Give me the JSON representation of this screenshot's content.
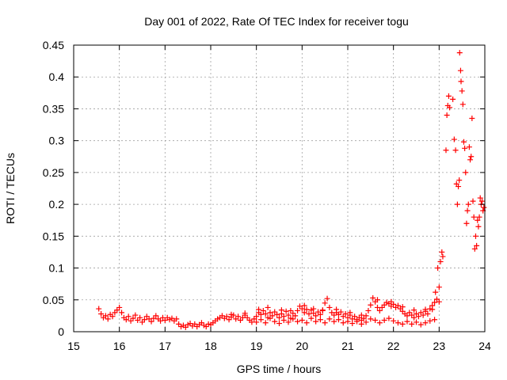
{
  "chart_data": {
    "type": "scatter",
    "title": "Day 001 of 2022, Rate Of TEC Index for receiver togu",
    "xlabel": "GPS time / hours",
    "ylabel": "ROTI / TECUs",
    "xlim": [
      15,
      24
    ],
    "ylim": [
      0,
      0.45
    ],
    "x_ticks": [
      15,
      16,
      17,
      18,
      19,
      20,
      21,
      22,
      23,
      24
    ],
    "y_ticks": [
      0,
      0.05,
      0.1,
      0.15,
      0.2,
      0.25,
      0.3,
      0.35,
      0.4,
      0.45
    ],
    "x_tick_labels": [
      "15",
      "16",
      "17",
      "18",
      "19",
      "20",
      "21",
      "22",
      "23",
      "24"
    ],
    "y_tick_labels": [
      "0",
      "0.05",
      "0.1",
      "0.15",
      "0.2",
      "0.25",
      "0.3",
      "0.35",
      "0.4",
      "0.45"
    ],
    "grid": true,
    "marker": "plus",
    "color": "#ff0000",
    "series": [
      {
        "points": [
          [
            15.55,
            0.036
          ],
          [
            15.6,
            0.028
          ],
          [
            15.65,
            0.022
          ],
          [
            15.7,
            0.025
          ],
          [
            15.75,
            0.02
          ],
          [
            15.8,
            0.027
          ],
          [
            15.85,
            0.024
          ],
          [
            15.9,
            0.03
          ],
          [
            15.95,
            0.034
          ],
          [
            16.0,
            0.038
          ],
          [
            16.05,
            0.03
          ],
          [
            16.1,
            0.022
          ],
          [
            16.15,
            0.019
          ],
          [
            16.2,
            0.024
          ],
          [
            16.25,
            0.017
          ],
          [
            16.3,
            0.021
          ],
          [
            16.35,
            0.026
          ],
          [
            16.4,
            0.018
          ],
          [
            16.45,
            0.022
          ],
          [
            16.5,
            0.015
          ],
          [
            16.55,
            0.019
          ],
          [
            16.6,
            0.024
          ],
          [
            16.65,
            0.02
          ],
          [
            16.7,
            0.016
          ],
          [
            16.75,
            0.021
          ],
          [
            16.8,
            0.025
          ],
          [
            16.85,
            0.02
          ],
          [
            16.9,
            0.017
          ],
          [
            16.95,
            0.022
          ],
          [
            17.0,
            0.018
          ],
          [
            17.05,
            0.022
          ],
          [
            17.1,
            0.019
          ],
          [
            17.15,
            0.021
          ],
          [
            17.2,
            0.017
          ],
          [
            17.25,
            0.02
          ],
          [
            17.3,
            0.012
          ],
          [
            17.35,
            0.008
          ],
          [
            17.4,
            0.01
          ],
          [
            17.45,
            0.007
          ],
          [
            17.5,
            0.011
          ],
          [
            17.55,
            0.013
          ],
          [
            17.6,
            0.009
          ],
          [
            17.65,
            0.012
          ],
          [
            17.7,
            0.008
          ],
          [
            17.75,
            0.011
          ],
          [
            17.8,
            0.014
          ],
          [
            17.85,
            0.01
          ],
          [
            17.9,
            0.008
          ],
          [
            17.95,
            0.012
          ],
          [
            18.0,
            0.011
          ],
          [
            18.05,
            0.014
          ],
          [
            18.1,
            0.017
          ],
          [
            18.15,
            0.02
          ],
          [
            18.2,
            0.022
          ],
          [
            18.25,
            0.025
          ],
          [
            18.3,
            0.021
          ],
          [
            18.35,
            0.024
          ],
          [
            18.4,
            0.019
          ],
          [
            18.45,
            0.023
          ],
          [
            18.5,
            0.026
          ],
          [
            18.55,
            0.02
          ],
          [
            18.6,
            0.024
          ],
          [
            18.65,
            0.018
          ],
          [
            18.7,
            0.022
          ],
          [
            18.75,
            0.026
          ],
          [
            18.8,
            0.022
          ],
          [
            18.85,
            0.018
          ],
          [
            18.9,
            0.015
          ],
          [
            18.95,
            0.02
          ],
          [
            19.0,
            0.024
          ],
          [
            19.05,
            0.03
          ],
          [
            19.1,
            0.027
          ],
          [
            19.15,
            0.033
          ],
          [
            19.2,
            0.028
          ],
          [
            19.25,
            0.022
          ],
          [
            19.3,
            0.03
          ],
          [
            19.35,
            0.025
          ],
          [
            19.4,
            0.031
          ],
          [
            19.45,
            0.027
          ],
          [
            19.5,
            0.022
          ],
          [
            19.55,
            0.028
          ],
          [
            19.6,
            0.024
          ],
          [
            19.65,
            0.032
          ],
          [
            19.7,
            0.026
          ],
          [
            19.75,
            0.021
          ],
          [
            19.8,
            0.029
          ],
          [
            19.85,
            0.025
          ],
          [
            19.9,
            0.033
          ],
          [
            19.95,
            0.04
          ],
          [
            20.0,
            0.036
          ],
          [
            20.05,
            0.03
          ],
          [
            20.1,
            0.035
          ],
          [
            20.15,
            0.028
          ],
          [
            20.2,
            0.034
          ],
          [
            20.25,
            0.029
          ],
          [
            20.3,
            0.025
          ],
          [
            20.35,
            0.031
          ],
          [
            20.4,
            0.027
          ],
          [
            20.45,
            0.033
          ],
          [
            20.5,
            0.045
          ],
          [
            20.55,
            0.052
          ],
          [
            20.6,
            0.038
          ],
          [
            20.65,
            0.03
          ],
          [
            20.7,
            0.026
          ],
          [
            20.75,
            0.03
          ],
          [
            20.8,
            0.027
          ],
          [
            20.85,
            0.031
          ],
          [
            20.9,
            0.024
          ],
          [
            20.95,
            0.028
          ],
          [
            21.0,
            0.022
          ],
          [
            21.05,
            0.026
          ],
          [
            21.1,
            0.02
          ],
          [
            21.15,
            0.024
          ],
          [
            21.2,
            0.019
          ],
          [
            21.25,
            0.022
          ],
          [
            21.3,
            0.018
          ],
          [
            21.35,
            0.021
          ],
          [
            21.4,
            0.025
          ],
          [
            21.45,
            0.033
          ],
          [
            21.5,
            0.042
          ],
          [
            21.55,
            0.053
          ],
          [
            21.6,
            0.047
          ],
          [
            21.65,
            0.038
          ],
          [
            21.7,
            0.033
          ],
          [
            21.75,
            0.038
          ],
          [
            21.8,
            0.042
          ],
          [
            21.85,
            0.046
          ],
          [
            21.9,
            0.044
          ],
          [
            21.95,
            0.047
          ],
          [
            22.0,
            0.043
          ],
          [
            22.05,
            0.038
          ],
          [
            22.1,
            0.041
          ],
          [
            22.15,
            0.036
          ],
          [
            22.2,
            0.032
          ],
          [
            22.25,
            0.028
          ],
          [
            22.3,
            0.025
          ],
          [
            22.35,
            0.03
          ],
          [
            22.4,
            0.026
          ],
          [
            22.45,
            0.022
          ],
          [
            22.5,
            0.028
          ],
          [
            22.55,
            0.024
          ],
          [
            22.6,
            0.03
          ],
          [
            22.65,
            0.026
          ],
          [
            22.7,
            0.032
          ],
          [
            22.75,
            0.028
          ],
          [
            22.8,
            0.036
          ],
          [
            22.85,
            0.041
          ],
          [
            22.9,
            0.046
          ],
          [
            22.95,
            0.051
          ],
          [
            23.0,
            0.07
          ],
          [
            18.45,
            0.027
          ],
          [
            18.75,
            0.029
          ],
          [
            19.05,
            0.035
          ],
          [
            19.25,
            0.038
          ],
          [
            19.55,
            0.034
          ],
          [
            19.75,
            0.033
          ],
          [
            20.05,
            0.041
          ],
          [
            20.25,
            0.036
          ],
          [
            20.45,
            0.034
          ],
          [
            20.75,
            0.035
          ],
          [
            21.05,
            0.03
          ],
          [
            21.3,
            0.026
          ],
          [
            21.65,
            0.05
          ],
          [
            21.95,
            0.04
          ],
          [
            22.2,
            0.039
          ],
          [
            22.45,
            0.034
          ],
          [
            22.7,
            0.035
          ],
          [
            22.85,
            0.035
          ],
          [
            19.0,
            0.015
          ],
          [
            19.1,
            0.019
          ],
          [
            19.2,
            0.014
          ],
          [
            19.3,
            0.021
          ],
          [
            19.4,
            0.016
          ],
          [
            19.5,
            0.013
          ],
          [
            19.6,
            0.018
          ],
          [
            19.7,
            0.015
          ],
          [
            19.8,
            0.02
          ],
          [
            19.9,
            0.016
          ],
          [
            20.0,
            0.018
          ],
          [
            20.1,
            0.014
          ],
          [
            20.2,
            0.021
          ],
          [
            20.3,
            0.016
          ],
          [
            20.4,
            0.019
          ],
          [
            20.5,
            0.014
          ],
          [
            20.6,
            0.02
          ],
          [
            20.7,
            0.016
          ],
          [
            20.8,
            0.019
          ],
          [
            20.9,
            0.014
          ],
          [
            21.0,
            0.016
          ],
          [
            21.1,
            0.013
          ],
          [
            21.2,
            0.016
          ],
          [
            21.3,
            0.012
          ],
          [
            21.4,
            0.015
          ],
          [
            21.5,
            0.02
          ],
          [
            21.6,
            0.018
          ],
          [
            21.7,
            0.014
          ],
          [
            21.8,
            0.018
          ],
          [
            21.9,
            0.021
          ],
          [
            22.0,
            0.017
          ],
          [
            22.1,
            0.014
          ],
          [
            22.2,
            0.012
          ],
          [
            22.3,
            0.016
          ],
          [
            22.4,
            0.012
          ],
          [
            22.5,
            0.015
          ],
          [
            22.6,
            0.011
          ],
          [
            22.7,
            0.014
          ],
          [
            22.8,
            0.017
          ],
          [
            22.9,
            0.019
          ],
          [
            22.92,
            0.062
          ],
          [
            22.97,
            0.1
          ],
          [
            23.0,
            0.047
          ],
          [
            23.03,
            0.11
          ],
          [
            23.06,
            0.125
          ],
          [
            23.08,
            0.118
          ],
          [
            23.15,
            0.285
          ],
          [
            23.17,
            0.34
          ],
          [
            23.19,
            0.355
          ],
          [
            23.21,
            0.37
          ],
          [
            23.23,
            0.352
          ],
          [
            23.3,
            0.365
          ],
          [
            23.33,
            0.302
          ],
          [
            23.36,
            0.285
          ],
          [
            23.38,
            0.232
          ],
          [
            23.4,
            0.2
          ],
          [
            23.42,
            0.228
          ],
          [
            23.44,
            0.238
          ],
          [
            23.45,
            0.438
          ],
          [
            23.47,
            0.41
          ],
          [
            23.48,
            0.393
          ],
          [
            23.5,
            0.378
          ],
          [
            23.52,
            0.357
          ],
          [
            23.54,
            0.298
          ],
          [
            23.56,
            0.288
          ],
          [
            23.58,
            0.25
          ],
          [
            23.6,
            0.17
          ],
          [
            23.62,
            0.19
          ],
          [
            23.64,
            0.2
          ],
          [
            23.66,
            0.29
          ],
          [
            23.68,
            0.27
          ],
          [
            23.7,
            0.275
          ],
          [
            23.72,
            0.335
          ],
          [
            23.74,
            0.205
          ],
          [
            23.76,
            0.18
          ],
          [
            23.78,
            0.13
          ],
          [
            23.8,
            0.15
          ],
          [
            23.82,
            0.135
          ],
          [
            23.84,
            0.175
          ],
          [
            23.86,
            0.165
          ],
          [
            23.88,
            0.18
          ],
          [
            23.9,
            0.21
          ],
          [
            23.92,
            0.2
          ],
          [
            23.94,
            0.205
          ],
          [
            23.96,
            0.19
          ],
          [
            23.98,
            0.195
          ]
        ]
      }
    ]
  }
}
